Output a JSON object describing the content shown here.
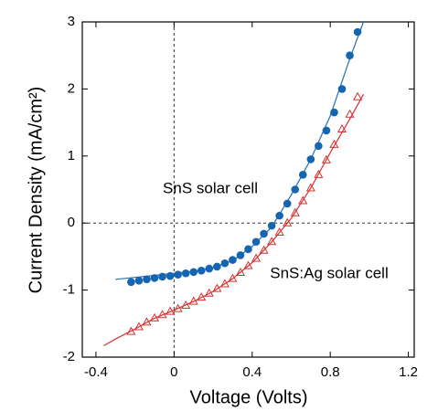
{
  "chart_data": {
    "type": "scatter",
    "xlabel": "Voltage (Volts)",
    "ylabel": "Current Density (mA/cm²)",
    "xlim": [
      -0.47,
      1.23
    ],
    "ylim": [
      -2,
      3
    ],
    "xticks": [
      -0.4,
      0,
      0.4,
      0.8,
      1.2
    ],
    "yticks": [
      -2,
      -1,
      0,
      1,
      2,
      3
    ],
    "zero_lines": true,
    "annotations": [
      "SnS solar cell",
      "SnS:Ag solar cell"
    ],
    "series": [
      {
        "marker": "circle",
        "color": "#1565b0",
        "x": [
          -0.22,
          -0.18,
          -0.14,
          -0.1,
          -0.06,
          -0.02,
          0.02,
          0.06,
          0.1,
          0.14,
          0.18,
          0.22,
          0.26,
          0.3,
          0.34,
          0.38,
          0.42,
          0.46,
          0.5,
          0.54,
          0.58,
          0.62,
          0.66,
          0.7,
          0.74,
          0.78,
          0.82,
          0.86,
          0.9,
          0.94
        ],
        "values": [
          -0.88,
          -0.86,
          -0.84,
          -0.82,
          -0.8,
          -0.79,
          -0.77,
          -0.75,
          -0.73,
          -0.71,
          -0.68,
          -0.65,
          -0.6,
          -0.55,
          -0.48,
          -0.39,
          -0.28,
          -0.16,
          -0.04,
          0.11,
          0.29,
          0.5,
          0.72,
          0.95,
          1.15,
          1.38,
          1.65,
          2.0,
          2.5,
          2.85
        ]
      },
      {
        "marker": "triangle",
        "color": "#d83030",
        "x": [
          -0.22,
          -0.18,
          -0.14,
          -0.1,
          -0.06,
          -0.02,
          0.02,
          0.06,
          0.1,
          0.14,
          0.18,
          0.22,
          0.26,
          0.3,
          0.34,
          0.38,
          0.42,
          0.46,
          0.5,
          0.54,
          0.58,
          0.62,
          0.66,
          0.7,
          0.74,
          0.78,
          0.82,
          0.86,
          0.9,
          0.94
        ],
        "values": [
          -1.62,
          -1.55,
          -1.48,
          -1.42,
          -1.37,
          -1.32,
          -1.28,
          -1.23,
          -1.17,
          -1.11,
          -1.05,
          -0.98,
          -0.91,
          -0.83,
          -0.74,
          -0.64,
          -0.53,
          -0.41,
          -0.28,
          -0.14,
          0.0,
          0.15,
          0.33,
          0.52,
          0.72,
          0.94,
          1.17,
          1.4,
          1.62,
          1.88
        ]
      },
      {
        "marker": "line",
        "color": "#1f6fb8",
        "x": [
          -0.3,
          -0.2,
          -0.1,
          0,
          0.1,
          0.2,
          0.3,
          0.4,
          0.5,
          0.6,
          0.7,
          0.8,
          0.9,
          0.97
        ],
        "values": [
          -0.84,
          -0.81,
          -0.78,
          -0.75,
          -0.72,
          -0.665,
          -0.56,
          -0.35,
          -0.06,
          0.42,
          0.95,
          1.6,
          2.45,
          3.0
        ]
      },
      {
        "marker": "line",
        "color": "#d83030",
        "x": [
          -0.36,
          -0.3,
          -0.2,
          -0.1,
          0,
          0.1,
          0.2,
          0.3,
          0.4,
          0.5,
          0.6,
          0.7,
          0.8,
          0.9,
          0.97
        ],
        "values": [
          -1.83,
          -1.73,
          -1.58,
          -1.42,
          -1.3,
          -1.17,
          -1.02,
          -0.83,
          -0.59,
          -0.28,
          0.07,
          0.52,
          1.05,
          1.55,
          1.92
        ]
      }
    ]
  }
}
